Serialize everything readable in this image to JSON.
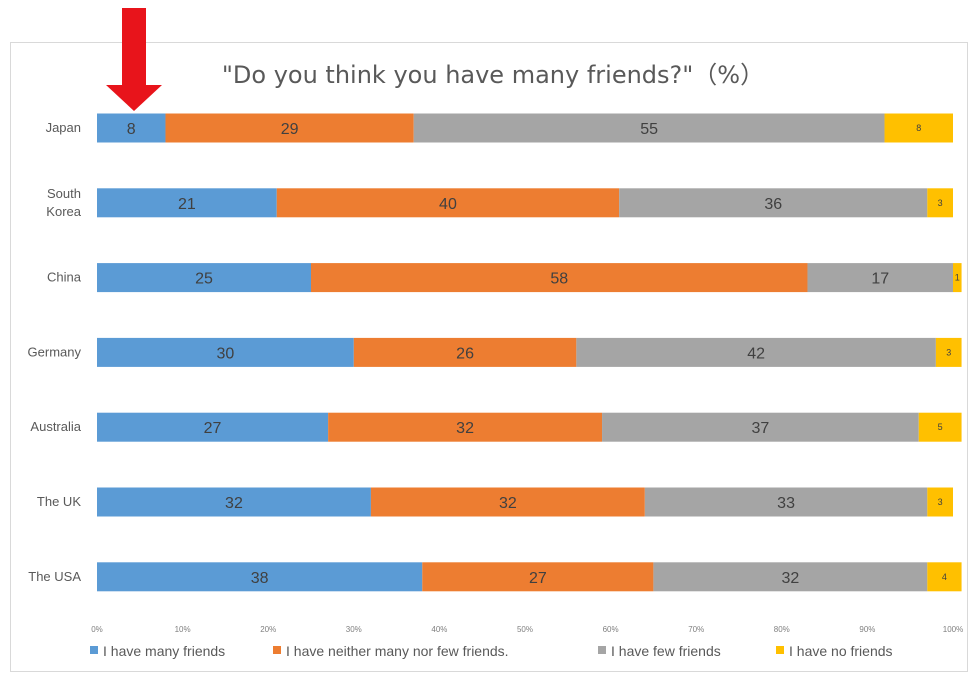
{
  "chart_data": {
    "type": "bar",
    "orientation": "horizontal-stacked-100",
    "title": "\"Do you think you have many friends?\"（%）",
    "categories": [
      "Japan",
      "South Korea",
      "China",
      "Germany",
      "Australia",
      "The UK",
      "The USA"
    ],
    "series": [
      {
        "name": "I have many friends",
        "color": "#5b9bd5",
        "values": [
          8,
          21,
          25,
          30,
          27,
          32,
          38
        ]
      },
      {
        "name": "I have neither many nor few friends.",
        "color": "#ed7d31",
        "values": [
          29,
          40,
          58,
          26,
          32,
          32,
          27
        ]
      },
      {
        "name": "I have few friends",
        "color": "#a5a5a5",
        "values": [
          55,
          36,
          17,
          42,
          37,
          33,
          32
        ]
      },
      {
        "name": "I have no friends",
        "color": "#ffc000",
        "values": [
          8,
          3,
          1,
          3,
          5,
          3,
          4
        ]
      }
    ],
    "x_ticks": [
      "0%",
      "10%",
      "20%",
      "30%",
      "40%",
      "50%",
      "60%",
      "70%",
      "80%",
      "90%",
      "100%"
    ],
    "xlim": [
      0,
      100
    ],
    "grid": false,
    "legend": "bottom"
  },
  "annotation": {
    "arrow_color": "#e8141b"
  }
}
